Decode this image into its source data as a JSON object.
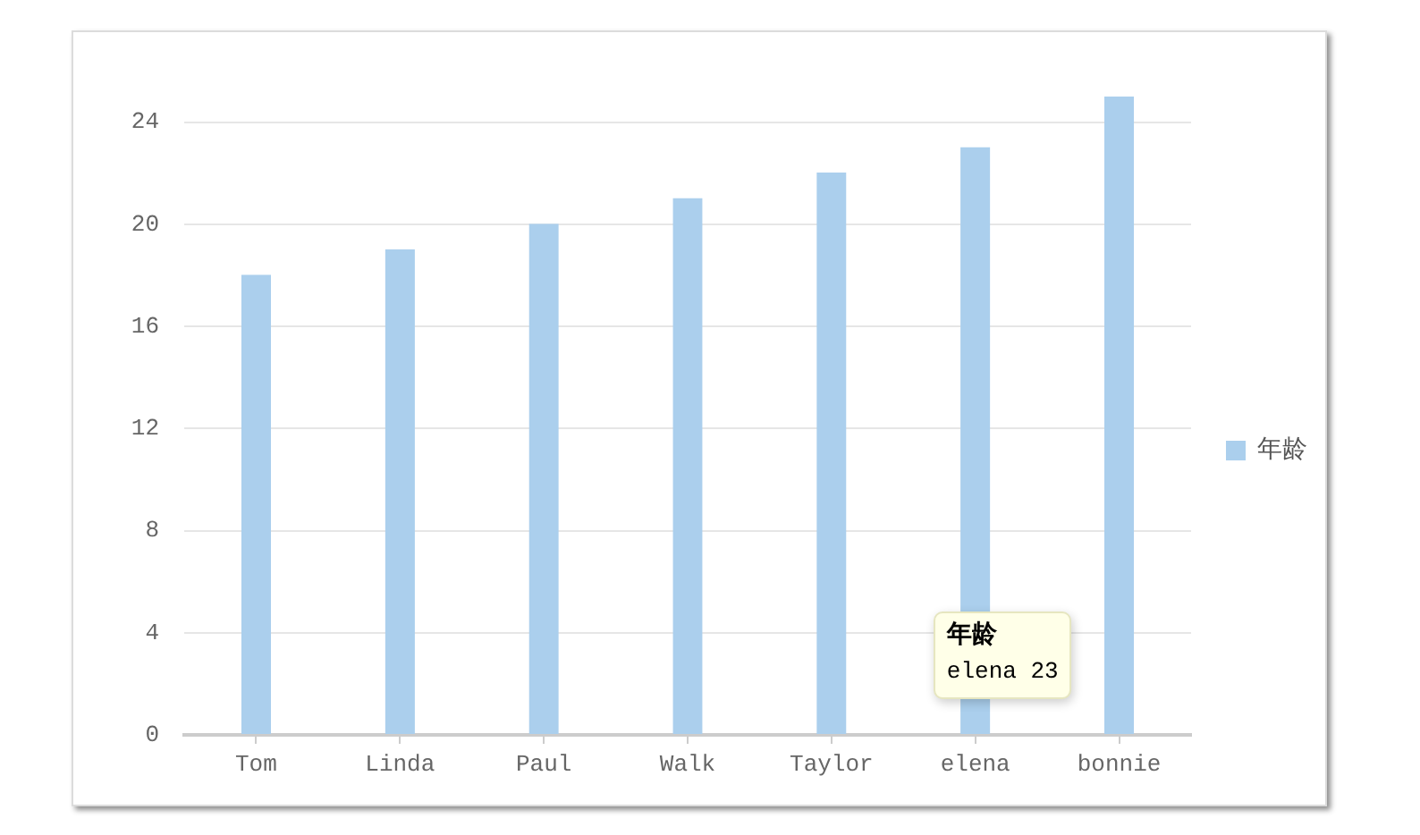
{
  "chart_data": {
    "type": "bar",
    "categories": [
      "Tom",
      "Linda",
      "Paul",
      "Walk",
      "Taylor",
      "elena",
      "bonnie"
    ],
    "series": [
      {
        "name": "年龄",
        "color": "#abcfed",
        "values": [
          18,
          19,
          20,
          21,
          22,
          23,
          25
        ]
      }
    ],
    "ylim": [
      0,
      25
    ],
    "yticks": [
      0,
      4,
      8,
      12,
      16,
      20,
      24
    ],
    "grid": "y",
    "legend": "right",
    "annotations": [
      "年龄\nelena 23"
    ]
  }
}
